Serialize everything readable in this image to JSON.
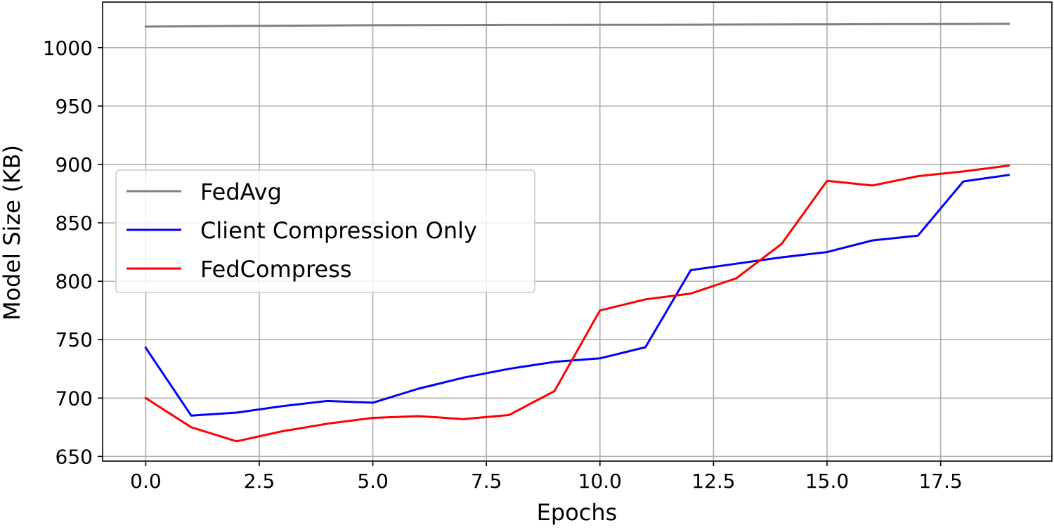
{
  "chart_data": {
    "type": "line",
    "title": "",
    "xlabel": "Epochs",
    "ylabel": "Model Size (KB)",
    "xlim": [
      -0.95,
      19.95
    ],
    "ylim": [
      646,
      1039
    ],
    "grid": true,
    "legend_position": "center-left",
    "x_ticks": [
      "0.0",
      "2.5",
      "5.0",
      "7.5",
      "10.0",
      "12.5",
      "15.0",
      "17.5"
    ],
    "y_ticks": [
      "650",
      "700",
      "750",
      "800",
      "850",
      "900",
      "950",
      "1000"
    ],
    "x": [
      0,
      1,
      2,
      3,
      4,
      5,
      6,
      7,
      8,
      9,
      10,
      11,
      12,
      13,
      14,
      15,
      16,
      17,
      18,
      19
    ],
    "series": [
      {
        "name": "FedAvg",
        "color": "#808080",
        "values": [
          1018,
          1018.3,
          1018.6,
          1018.8,
          1019,
          1019.2,
          1019.3,
          1019.4,
          1019.5,
          1019.5,
          1019.6,
          1019.6,
          1019.7,
          1019.8,
          1019.9,
          1020,
          1020.1,
          1020.2,
          1020.3,
          1020.4
        ]
      },
      {
        "name": "Client Compression Only",
        "color": "#0000ff",
        "values": [
          743,
          685,
          687.5,
          693,
          697.5,
          696,
          708,
          717.5,
          725,
          731,
          734,
          743.5,
          809.5,
          815,
          820.5,
          825,
          835,
          839,
          885.5,
          891
        ]
      },
      {
        "name": "FedCompress",
        "color": "#ff0000",
        "values": [
          700,
          675,
          663,
          671.5,
          678,
          683,
          684.5,
          682,
          685.5,
          706,
          775,
          784.5,
          789.5,
          802.5,
          832,
          886,
          882,
          890,
          894,
          899
        ]
      }
    ]
  }
}
